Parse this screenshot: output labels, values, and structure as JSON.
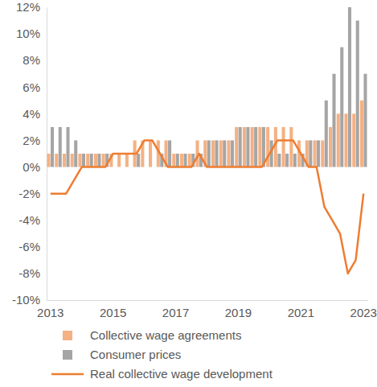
{
  "chart_data": {
    "type": "bar",
    "categories": [
      "2013",
      null,
      null,
      null,
      null,
      null,
      null,
      null,
      "2015",
      null,
      null,
      null,
      null,
      null,
      null,
      null,
      "2017",
      null,
      null,
      null,
      null,
      null,
      null,
      null,
      "2019",
      null,
      null,
      null,
      null,
      null,
      null,
      null,
      "2021",
      null,
      null,
      null,
      null,
      null,
      null,
      null,
      "2023"
    ],
    "series": [
      {
        "name": "Collective wage agreements",
        "type": "bar",
        "color": "#f4b183",
        "values": [
          1,
          1,
          1,
          1,
          1,
          1,
          1,
          1,
          1,
          1,
          1,
          2,
          2,
          2,
          2,
          2,
          1,
          1,
          1,
          2,
          2,
          2,
          2,
          2,
          3,
          3,
          3,
          3,
          3,
          3,
          3,
          3,
          2,
          2,
          2,
          2,
          3,
          4,
          4,
          4,
          5
        ]
      },
      {
        "name": "Consumer prices",
        "type": "bar",
        "color": "#a5a5a5",
        "values": [
          3,
          3,
          3,
          2,
          1,
          1,
          1,
          1,
          0,
          0,
          0,
          1,
          0,
          0,
          1,
          2,
          1,
          1,
          1,
          1,
          2,
          2,
          2,
          2,
          3,
          3,
          3,
          3,
          2,
          1,
          1,
          1,
          1,
          2,
          2,
          5,
          7,
          9,
          12,
          11,
          7
        ]
      },
      {
        "name": "Real collective wage development",
        "type": "line",
        "color": "#ed7d31",
        "values": [
          -2,
          -2,
          -2,
          -1,
          0,
          0,
          0,
          0,
          1,
          1,
          1,
          1,
          2,
          2,
          1,
          0,
          0,
          0,
          0,
          1,
          0,
          0,
          0,
          0,
          0,
          0,
          0,
          0,
          1,
          2,
          2,
          2,
          1,
          0,
          0,
          -3,
          -4,
          -5,
          -8,
          -7,
          -2
        ]
      }
    ],
    "ylim": [
      -10,
      12
    ],
    "yticks": [
      {
        "value": -10,
        "label": "-10%"
      },
      {
        "value": -8,
        "label": "-8%"
      },
      {
        "value": -6,
        "label": "-6%"
      },
      {
        "value": -4,
        "label": "-4%"
      },
      {
        "value": -2,
        "label": "-2%"
      },
      {
        "value": 0,
        "label": "0%"
      },
      {
        "value": 2,
        "label": "2%"
      },
      {
        "value": 4,
        "label": "4%"
      },
      {
        "value": 6,
        "label": "6%"
      },
      {
        "value": 8,
        "label": "8%"
      },
      {
        "value": 10,
        "label": "10%"
      },
      {
        "value": 12,
        "label": "12%"
      }
    ],
    "grid": false,
    "legend": "bottom"
  }
}
